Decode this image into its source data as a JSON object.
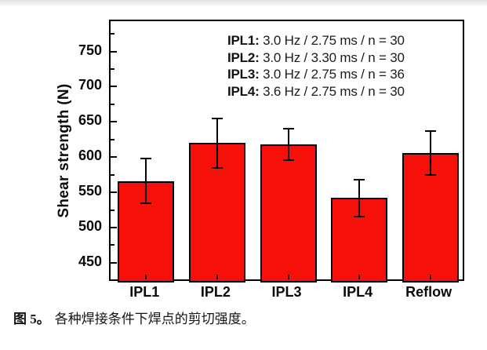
{
  "caption": {
    "label": "图 5。",
    "text": "各种焊接条件下焊点的剪切强度。"
  },
  "chart_data": {
    "type": "bar",
    "title": "",
    "xlabel": "",
    "ylabel": "Shear strength (N)",
    "categories": [
      "IPL1",
      "IPL2",
      "IPL3",
      "IPL4",
      "Reflow"
    ],
    "values": [
      566,
      620,
      618,
      542,
      606
    ],
    "errors": [
      32,
      35,
      22,
      26,
      31
    ],
    "bar_color": "#f6100a",
    "bar_edge_color": "#000000",
    "ylim": [
      422,
      793
    ],
    "yticks_major": [
      450,
      500,
      550,
      600,
      650,
      700,
      750
    ],
    "yticks_minor": [
      425,
      475,
      525,
      575,
      625,
      675,
      725,
      775
    ],
    "grid": "off",
    "legend_position": "top-right-inside",
    "legend": [
      {
        "label": "IPL1:",
        "text": " 3.0 Hz / 2.75 ms / n = 30"
      },
      {
        "label": "IPL2:",
        "text": " 3.0 Hz / 3.30 ms / n = 30"
      },
      {
        "label": "IPL3:",
        "text": " 3.0 Hz / 2.75 ms / n = 36"
      },
      {
        "label": "IPL4:",
        "text": " 3.6 Hz / 2.75 ms / n = 30"
      }
    ]
  }
}
